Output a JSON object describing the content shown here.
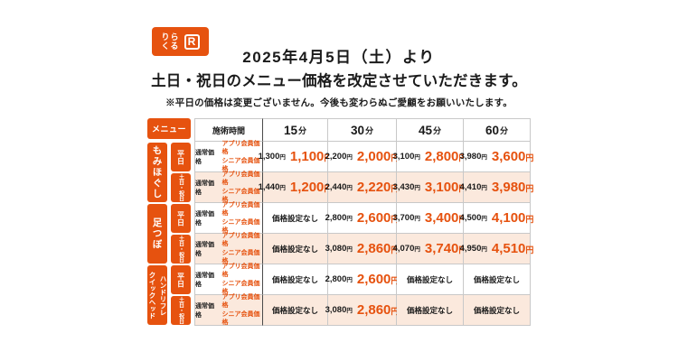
{
  "logo": {
    "name": "りらくる",
    "mark": "R"
  },
  "header": {
    "title_line1": "2025年4月5日（土）より",
    "title_line2": "土日・祝日のメニュー価格を改定させていただきます。",
    "note": "※平日の価格は変更ございません。今後も変わらぬご愛顧をお願いいたします。"
  },
  "colors": {
    "accent": "#e6520f",
    "weekend_row_bg": "#fbe9dd",
    "border": "#c8c8c8"
  },
  "table": {
    "menu_label": "メニュー",
    "time_header": "施術時間",
    "durations": [
      {
        "num": "15",
        "unit": "分"
      },
      {
        "num": "30",
        "unit": "分"
      },
      {
        "num": "45",
        "unit": "分"
      },
      {
        "num": "60",
        "unit": "分"
      }
    ],
    "price_type": {
      "regular": "通常価格",
      "member_line1": "アプリ会員価格",
      "member_line2": "シニア会員価格"
    },
    "yen": "円",
    "day_labels": {
      "weekday": "平日",
      "weekend": "土日・祝日"
    },
    "categories": [
      {
        "name": "もみほぐし"
      },
      {
        "name": "足つぼ"
      },
      {
        "name": "ハンドリフレ\nクイックヘッド"
      }
    ],
    "rows": [
      {
        "category": "もみほぐし",
        "day": "平日",
        "prices": [
          {
            "regular": "1,300",
            "member": "1,100"
          },
          {
            "regular": "2,200",
            "member": "2,000"
          },
          {
            "regular": "3,100",
            "member": "2,800"
          },
          {
            "regular": "3,980",
            "member": "3,600"
          }
        ]
      },
      {
        "category": "もみほぐし",
        "day": "土日・祝日",
        "prices": [
          {
            "regular": "1,440",
            "member": "1,200"
          },
          {
            "regular": "2,440",
            "member": "2,220"
          },
          {
            "regular": "3,430",
            "member": "3,100"
          },
          {
            "regular": "4,410",
            "member": "3,980"
          }
        ]
      },
      {
        "category": "足つぼ",
        "day": "平日",
        "prices": [
          {
            "none": "価格設定なし"
          },
          {
            "regular": "2,800",
            "member": "2,600"
          },
          {
            "regular": "3,700",
            "member": "3,400"
          },
          {
            "regular": "4,500",
            "member": "4,100"
          }
        ]
      },
      {
        "category": "足つぼ",
        "day": "土日・祝日",
        "prices": [
          {
            "none": "価格設定なし"
          },
          {
            "regular": "3,080",
            "member": "2,860"
          },
          {
            "regular": "4,070",
            "member": "3,740"
          },
          {
            "regular": "4,950",
            "member": "4,510"
          }
        ]
      },
      {
        "category": "ハンドリフレ・クイックヘッド",
        "day": "平日",
        "prices": [
          {
            "none": "価格設定なし"
          },
          {
            "regular": "2,800",
            "member": "2,600"
          },
          {
            "none": "価格設定なし"
          },
          {
            "none": "価格設定なし"
          }
        ]
      },
      {
        "category": "ハンドリフレ・クイックヘッド",
        "day": "土日・祝日",
        "prices": [
          {
            "none": "価格設定なし"
          },
          {
            "regular": "3,080",
            "member": "2,860"
          },
          {
            "none": "価格設定なし"
          },
          {
            "none": "価格設定なし"
          }
        ]
      }
    ]
  }
}
